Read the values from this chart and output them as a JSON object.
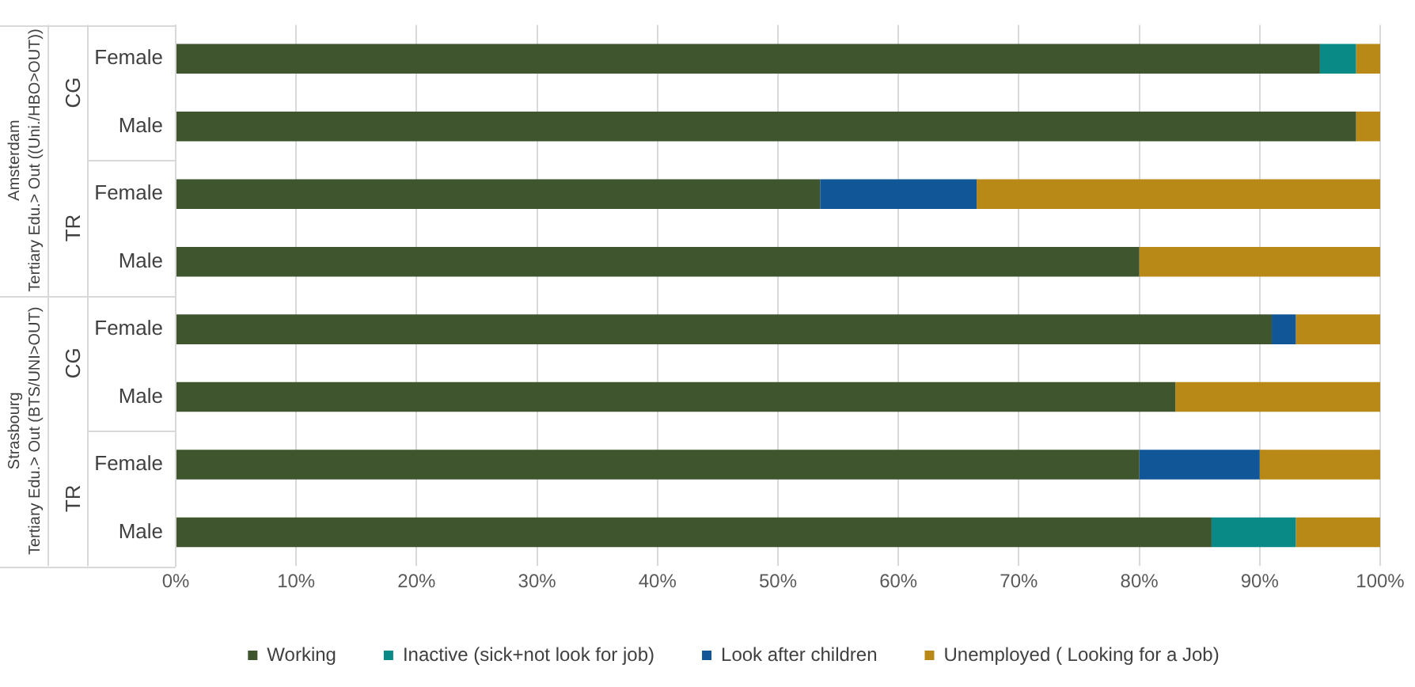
{
  "chart_data": {
    "type": "bar",
    "orientation": "horizontal",
    "stacked": true,
    "categories": [
      "Female",
      "Male",
      "Female",
      "Male",
      "Female",
      "Male",
      "Female",
      "Male"
    ],
    "series": [
      {
        "name": "Working",
        "color": "#3f552d",
        "values": [
          95,
          98,
          53.5,
          80,
          91,
          83,
          80,
          86
        ]
      },
      {
        "name": "Inactive (sick+not look for job)",
        "color": "#0a8a87",
        "values": [
          3,
          0,
          0,
          0,
          0,
          0,
          0,
          7
        ]
      },
      {
        "name": "Look after children",
        "color": "#115797",
        "values": [
          0,
          0,
          13,
          0,
          2,
          0,
          10,
          0
        ]
      },
      {
        "name": "Unemployed ( Looking for a Job)",
        "color": "#b88916",
        "values": [
          2,
          2,
          33.5,
          20,
          7,
          17,
          10,
          7
        ]
      }
    ],
    "xlim": [
      0,
      100
    ],
    "xticks": [
      {
        "value": 0,
        "label": "0%"
      },
      {
        "value": 10,
        "label": "10%"
      },
      {
        "value": 20,
        "label": "20%"
      },
      {
        "value": 30,
        "label": "30%"
      },
      {
        "value": 40,
        "label": "40%"
      },
      {
        "value": 50,
        "label": "50%"
      },
      {
        "value": 60,
        "label": "60%"
      },
      {
        "value": 70,
        "label": "70%"
      },
      {
        "value": 80,
        "label": "80%"
      },
      {
        "value": 90,
        "label": "90%"
      },
      {
        "value": 100,
        "label": "100%"
      }
    ],
    "annotations": [
      "CG",
      "TR",
      "CG",
      "TR",
      "Amsterdam",
      "Tertiary Edu.> Out ((Uni./HBO>OUT))",
      "Strasbourg",
      "Tertiary Edu.> Out (BTS/UNI>OUT)"
    ],
    "grid": "x",
    "legend": "bottom"
  }
}
